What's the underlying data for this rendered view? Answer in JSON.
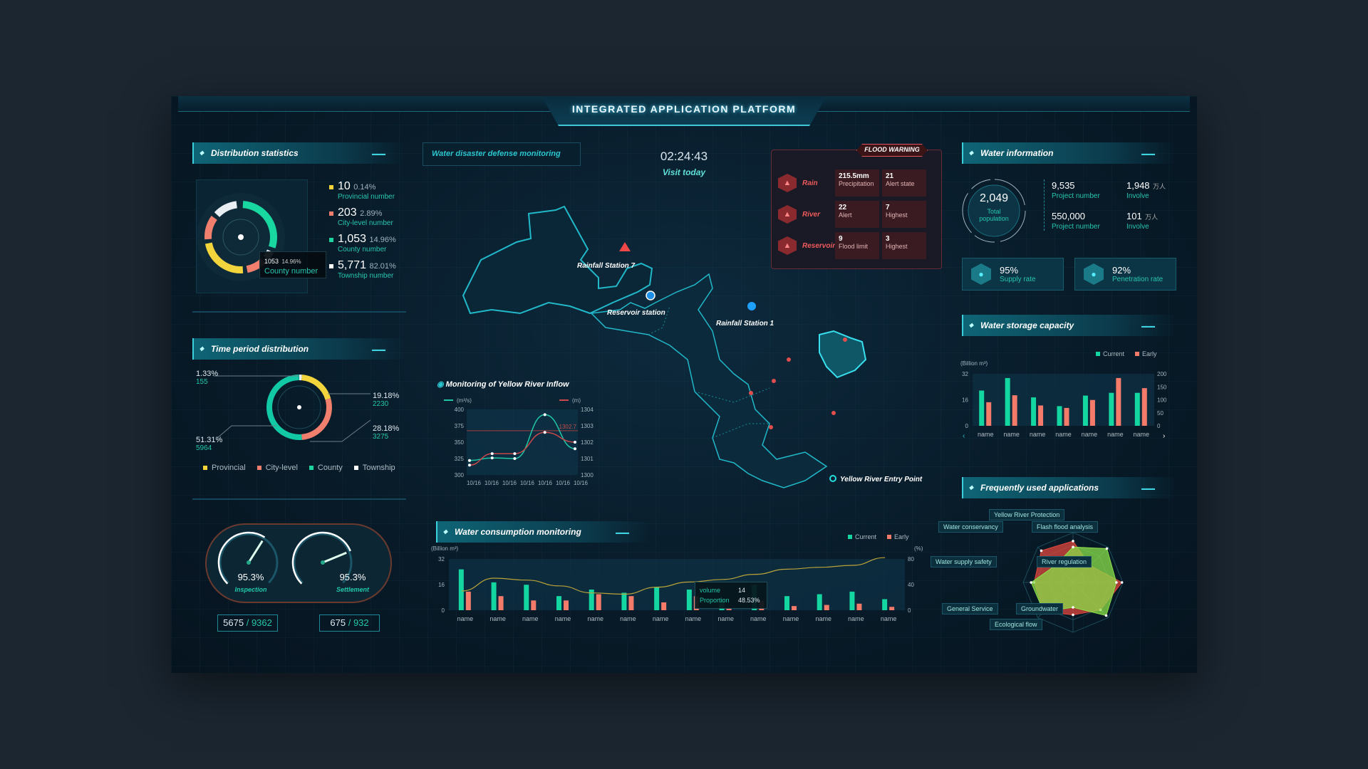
{
  "header": {
    "title": "INTEGRATED APPLICATION PLATFORM"
  },
  "distribution": {
    "title": "Distribution statistics",
    "items": [
      {
        "value": "10",
        "pct": "0.14%",
        "label": "Provincial number",
        "color": "#f5d33a",
        "share": 0.14
      },
      {
        "value": "203",
        "pct": "2.89%",
        "label": "City-level number",
        "color": "#f07f6e",
        "share": 2.89
      },
      {
        "value": "1,053",
        "pct": "14.96%",
        "label": "County number",
        "color": "#1fd3a0",
        "share": 14.96
      },
      {
        "value": "5,771",
        "pct": "82.01%",
        "label": "Township number",
        "color": "#ffffff",
        "share": 82.01
      }
    ],
    "tooltip": {
      "value": "1053",
      "pct": "14.96%",
      "label": "County number"
    }
  },
  "time_period": {
    "title": "Time period distribution",
    "slices": [
      {
        "pct": "1.33%",
        "count": "155",
        "share": 1.33,
        "color": "#e8eef2"
      },
      {
        "pct": "19.18%",
        "count": "2230",
        "share": 19.18,
        "color": "#f2d53c"
      },
      {
        "pct": "28.18%",
        "count": "3275",
        "share": 28.18,
        "color": "#f07f6e"
      },
      {
        "pct": "51.31%",
        "count": "5964",
        "share": 51.31,
        "color": "#12c9a6"
      }
    ],
    "legend": [
      {
        "label": "Provincial",
        "color": "#f5d33a"
      },
      {
        "label": "City-level",
        "color": "#f07f6e"
      },
      {
        "label": "County",
        "color": "#1fd3a0"
      },
      {
        "label": "Township",
        "color": "#ffffff"
      }
    ]
  },
  "gauges": [
    {
      "value": "95.3%",
      "label": "Inspection",
      "done": "5675",
      "total": "9362",
      "level": 0.62
    },
    {
      "value": "95.3%",
      "label": "Settlement",
      "done": "675",
      "total": "932",
      "level": 0.75
    }
  ],
  "center": {
    "section_label": "Water disaster defense monitoring",
    "clock": "02:24:43",
    "visit_label": "Visit today",
    "stations": [
      "Rainfall Station 7",
      "Reservoir station",
      "Rainfall Station 1",
      "Yellow River Entry Point"
    ]
  },
  "flood": {
    "title": "FLOOD WARNING",
    "rows": [
      {
        "name": "Rain",
        "icon": "rain-icon",
        "cells": [
          {
            "v": "215.5mm",
            "l": "Precipitation"
          },
          {
            "v": "21",
            "l": "Alert state"
          }
        ]
      },
      {
        "name": "River",
        "icon": "river-icon",
        "cells": [
          {
            "v": "22",
            "l": "Alert"
          },
          {
            "v": "7",
            "l": "Highest"
          }
        ]
      },
      {
        "name": "Reservoir",
        "icon": "reservoir-icon",
        "cells": [
          {
            "v": "9",
            "l": "Flood limit"
          },
          {
            "v": "3",
            "l": "Highest"
          }
        ]
      }
    ]
  },
  "chart_data": [
    {
      "type": "line",
      "title": "Monitoring of Yellow River Inflow",
      "legend": [
        "(m³/s)",
        "(m)"
      ],
      "categories": [
        "10/16",
        "10/16",
        "10/16",
        "10/16",
        "10/16",
        "10/16",
        "10/16"
      ],
      "ylim": [
        300,
        400
      ],
      "yticks": [
        "400",
        "375",
        "350",
        "325",
        "300"
      ],
      "y2lim": [
        1300,
        1304
      ],
      "y2ticks": [
        "1304",
        "1303",
        "1302",
        "1301",
        "1300"
      ],
      "x": [
        0,
        1.5,
        3,
        5,
        7
      ],
      "series": [
        {
          "name": "(m³/s)",
          "values": [
            322,
            326,
            325,
            392,
            340
          ],
          "color": "#1fc7a5"
        },
        {
          "name": "(m)",
          "values": [
            1300.6,
            1301.3,
            1301.3,
            1302.6,
            1302.0
          ],
          "color": "#c9484a"
        }
      ],
      "reference": {
        "value": 1302.7,
        "label": "1302.7"
      }
    },
    {
      "type": "bar",
      "title": "Water consumption monitoring",
      "ylabel": "(Billion m³)",
      "y2label": "(%)",
      "ylim": [
        0,
        32
      ],
      "yticks": [
        "32",
        "16",
        "0"
      ],
      "y2lim": [
        0,
        80
      ],
      "y2ticks": [
        "80",
        "40",
        "0"
      ],
      "legend": [
        "Current",
        "Early"
      ],
      "categories": [
        "name",
        "name",
        "name",
        "name",
        "name",
        "name",
        "name",
        "name",
        "name",
        "name",
        "name",
        "name",
        "name",
        "name"
      ],
      "series": [
        {
          "name": "Current",
          "values": [
            25.5,
            17.4,
            15.9,
            8.8,
            12.9,
            10.9,
            14.3,
            12.9,
            6.1,
            15.9,
            8.8,
            10,
            11.6,
            6.9
          ]
        },
        {
          "name": "Early",
          "values": [
            11.6,
            8.8,
            6.1,
            6.1,
            10,
            8.8,
            4.9,
            8.8,
            1.2,
            6.1,
            2.6,
            3.3,
            4.1,
            2.1
          ]
        },
        {
          "name": "Proportion",
          "values": [
            30,
            50,
            47,
            38,
            27,
            25,
            36,
            44,
            48,
            56,
            64,
            67,
            70,
            82
          ]
        }
      ],
      "tooltip": {
        "volume_label": "volume",
        "volume": "14",
        "proportion_label": "Proportion",
        "proportion": "48.53%"
      }
    },
    {
      "type": "bar",
      "title": "Water storage capacity",
      "ylabel": "(Billion m³)",
      "ylim": [
        0,
        32
      ],
      "yticks": [
        "32",
        "16",
        "0"
      ],
      "y2lim": [
        0,
        200
      ],
      "y2ticks": [
        "200",
        "150",
        "100",
        "50",
        "0"
      ],
      "legend": [
        "Current",
        "Early"
      ],
      "categories": [
        "name",
        "name",
        "name",
        "name",
        "name",
        "name",
        "name"
      ],
      "series": [
        {
          "name": "Current",
          "values": [
            21.7,
            29.4,
            17.5,
            12.1,
            18.6,
            20.3,
            20.3
          ]
        },
        {
          "name": "Early",
          "values": [
            14.5,
            18.8,
            12.5,
            11,
            15.9,
            29.4,
            23.2
          ]
        }
      ]
    },
    {
      "type": "radar",
      "title": "Frequently used applications",
      "axes": [
        "Yellow River Protection",
        "Flash flood analysis",
        "River regulation",
        "Groundwater",
        "Ecological flow",
        "General Service",
        "Water supply safety",
        "Water conservancy"
      ],
      "series": [
        {
          "name": "A",
          "color": "#e0473d",
          "values": [
            0.83,
            0.48,
            0.98,
            0.78,
            0.65,
            0.83,
            0.78,
            0.9
          ]
        },
        {
          "name": "B",
          "color": "#8be04a",
          "values": [
            0.71,
            0.96,
            0.87,
            0.94,
            0.5,
            0.83,
            0.84,
            0.49
          ]
        }
      ]
    }
  ],
  "water_info": {
    "title": "Water information",
    "total": "2,049",
    "total_label": "Total population",
    "stats": [
      {
        "v": "9,535",
        "u": "",
        "l": "Project number"
      },
      {
        "v": "1,948",
        "u": "万人",
        "l": "Involve"
      },
      {
        "v": "550,000",
        "u": "",
        "l": "Project number"
      },
      {
        "v": "101",
        "u": "万人",
        "l": "Involve"
      }
    ],
    "rates": [
      {
        "v": "95%",
        "l": "Supply rate"
      },
      {
        "v": "92%",
        "l": "Penetration rate"
      }
    ]
  },
  "colors": {
    "current": "#13d6a0",
    "early": "#f47a6a"
  }
}
